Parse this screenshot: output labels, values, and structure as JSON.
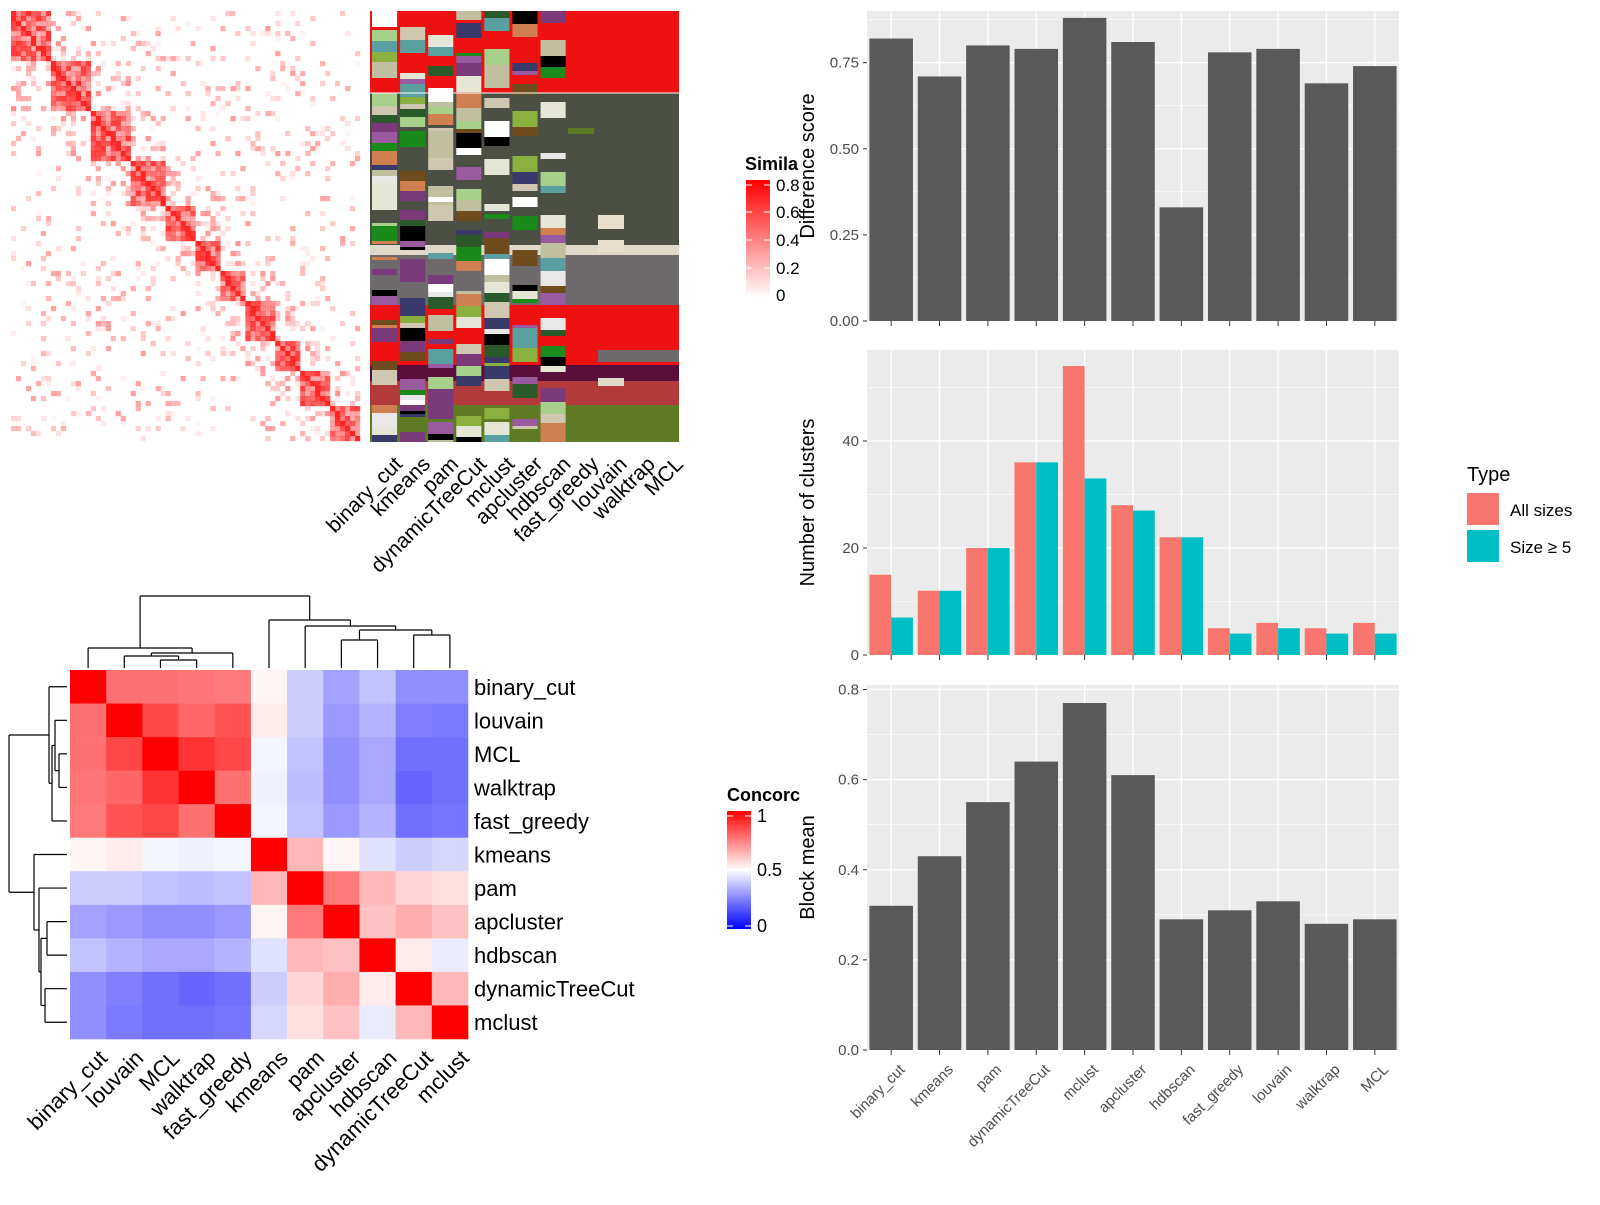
{
  "colors": {
    "heat_red": "#ff0000",
    "heat_white": "#ffffff",
    "heat_blue": "#0000ff",
    "bar_gray": "#595959",
    "panel_bg": "#ebebeb",
    "grid": "#ffffff",
    "all_sizes": "#f8766d",
    "size_ge5": "#00bfc4",
    "track_red": "#ee1111",
    "track_olive": "#4c4f43",
    "track_gray": "#6e6a6b",
    "track_green": "#5e7a22"
  },
  "similarity_legend": {
    "title": "Simila",
    "ticks": [
      "0.8",
      "0.6",
      "0.4",
      "0.2",
      "0"
    ]
  },
  "concordance_legend": {
    "title": "Concorc",
    "ticks": [
      "1",
      "0.5",
      "0"
    ]
  },
  "track_labels": [
    "binary_cut",
    "kmeans",
    "pam",
    "dynamicTreeCut",
    "mclust",
    "apcluster",
    "hdbscan",
    "fast_greedy",
    "louvain",
    "walktrap",
    "MCL"
  ],
  "concordance": {
    "row_labels": [
      "binary_cut",
      "louvain",
      "MCL",
      "walktrap",
      "fast_greedy",
      "kmeans",
      "pam",
      "apcluster",
      "hdbscan",
      "dynamicTreeCut",
      "mclust"
    ],
    "col_labels": [
      "binary_cut",
      "louvain",
      "MCL",
      "walktrap",
      "fast_greedy",
      "kmeans",
      "pam",
      "apcluster",
      "hdbscan",
      "dynamicTreeCut",
      "mclust"
    ],
    "matrix": [
      [
        1.0,
        0.78,
        0.78,
        0.77,
        0.76,
        0.52,
        0.4,
        0.32,
        0.38,
        0.28,
        0.28
      ],
      [
        0.78,
        1.0,
        0.86,
        0.8,
        0.84,
        0.54,
        0.4,
        0.3,
        0.35,
        0.25,
        0.24
      ],
      [
        0.78,
        0.86,
        1.0,
        0.9,
        0.86,
        0.48,
        0.38,
        0.28,
        0.33,
        0.22,
        0.22
      ],
      [
        0.77,
        0.8,
        0.9,
        1.0,
        0.78,
        0.47,
        0.37,
        0.28,
        0.33,
        0.2,
        0.22
      ],
      [
        0.76,
        0.84,
        0.86,
        0.78,
        1.0,
        0.48,
        0.38,
        0.3,
        0.35,
        0.22,
        0.23
      ],
      [
        0.52,
        0.54,
        0.48,
        0.47,
        0.48,
        1.0,
        0.64,
        0.52,
        0.44,
        0.4,
        0.42
      ],
      [
        0.4,
        0.4,
        0.38,
        0.37,
        0.38,
        0.64,
        1.0,
        0.76,
        0.64,
        0.58,
        0.56
      ],
      [
        0.32,
        0.3,
        0.28,
        0.28,
        0.3,
        0.52,
        0.76,
        1.0,
        0.62,
        0.66,
        0.62
      ],
      [
        0.38,
        0.35,
        0.33,
        0.33,
        0.35,
        0.44,
        0.64,
        0.62,
        1.0,
        0.54,
        0.46
      ],
      [
        0.28,
        0.25,
        0.22,
        0.2,
        0.22,
        0.4,
        0.58,
        0.66,
        0.54,
        1.0,
        0.64
      ],
      [
        0.28,
        0.24,
        0.22,
        0.22,
        0.23,
        0.42,
        0.56,
        0.62,
        0.46,
        0.64,
        1.0
      ]
    ]
  },
  "chart_data": [
    {
      "type": "bar",
      "categories": [
        "binary_cut",
        "kmeans",
        "pam",
        "dynamicTreeCut",
        "mclust",
        "apcluster",
        "hdbscan",
        "fast_greedy",
        "louvain",
        "walktrap",
        "MCL"
      ],
      "values": [
        0.82,
        0.71,
        0.8,
        0.79,
        0.88,
        0.81,
        0.33,
        0.78,
        0.79,
        0.69,
        0.74
      ],
      "xlabel": "",
      "ylabel": "Difference score",
      "ylim": [
        0,
        0.9
      ],
      "yticks": [
        0,
        0.25,
        0.5,
        0.75
      ],
      "ytick_labels": [
        "0.00",
        "0.25",
        "0.50",
        "0.75"
      ]
    },
    {
      "type": "bar",
      "categories": [
        "binary_cut",
        "kmeans",
        "pam",
        "dynamicTreeCut",
        "mclust",
        "apcluster",
        "hdbscan",
        "fast_greedy",
        "louvain",
        "walktrap",
        "MCL"
      ],
      "series": [
        {
          "name": "All sizes",
          "values": [
            15,
            12,
            20,
            36,
            54,
            28,
            22,
            5,
            6,
            5,
            6
          ]
        },
        {
          "name": "Size ≥ 5",
          "values": [
            7,
            12,
            20,
            36,
            33,
            27,
            22,
            4,
            5,
            4,
            4
          ]
        }
      ],
      "xlabel": "",
      "ylabel": "Number of clusters",
      "ylim": [
        0,
        57
      ],
      "yticks": [
        0,
        20,
        40
      ],
      "ytick_labels": [
        "0",
        "20",
        "40"
      ],
      "legend_title": "Type",
      "legend_position": "right"
    },
    {
      "type": "bar",
      "categories": [
        "binary_cut",
        "kmeans",
        "pam",
        "dynamicTreeCut",
        "mclust",
        "apcluster",
        "hdbscan",
        "fast_greedy",
        "louvain",
        "walktrap",
        "MCL"
      ],
      "values": [
        0.32,
        0.43,
        0.55,
        0.64,
        0.77,
        0.61,
        0.29,
        0.31,
        0.33,
        0.28,
        0.29
      ],
      "xlabel": "",
      "ylabel": "Block mean",
      "ylim": [
        0,
        0.81
      ],
      "yticks": [
        0,
        0.2,
        0.4,
        0.6,
        0.8
      ],
      "ytick_labels": [
        "0.0",
        "0.2",
        "0.4",
        "0.6",
        "0.8"
      ]
    }
  ]
}
